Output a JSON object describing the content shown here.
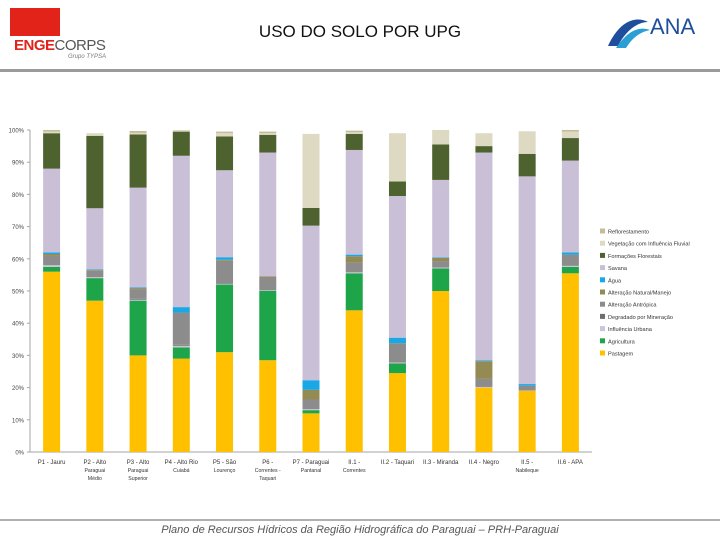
{
  "header": {
    "logo_enge": "ENGE",
    "logo_corps": "CORPS",
    "logo_sub": "Grupo TYPSA",
    "title": "USO DO SOLO POR UPG",
    "ana_logo": "ANA"
  },
  "footer": {
    "text": "Plano de Recursos Hídricos da Região Hidrográfica do Paraguai – PRH-Paraguai"
  },
  "colors": {
    "Pastagem": "#ffc000",
    "Agricultura": "#1ea54a",
    "Influência Urbana": "#cdc3da",
    "Degradado por Mineração": "#6e6e6e",
    "Alteração Antrópica": "#8c8c8c",
    "Alteração Natural/Manejo": "#948a54",
    "Água": "#1aa7e6",
    "Savana": "#c9c0d8",
    "Formações Florestais": "#4e6230",
    "Vegetação com Influência Fluvial": "#ddd9c3",
    "Reflorestamento": "#c4bd97"
  },
  "chart_data": {
    "type": "bar",
    "stacked": true,
    "title": "",
    "xlabel": "",
    "ylabel": "",
    "ylim": [
      0,
      100
    ],
    "y_ticks": [
      "0%",
      "10%",
      "20%",
      "30%",
      "40%",
      "50%",
      "60%",
      "70%",
      "80%",
      "90%",
      "100%"
    ],
    "grid": false,
    "legend_position": "right",
    "categories": [
      [
        "P1 - Jauru"
      ],
      [
        "P2 - Alto",
        "Paraguai",
        "Médio"
      ],
      [
        "P3 - Alto",
        "Paraguai",
        "Superior"
      ],
      [
        "P4 - Alto Rio",
        "Cuiabá"
      ],
      [
        "P5 - São",
        "Lourenço"
      ],
      [
        "P6 -",
        "Correntes -",
        "Taquari"
      ],
      [
        "P7 - Paraguai",
        "Pantanal"
      ],
      [
        "II.1 -",
        "Correntes"
      ],
      [
        "II.2 - Taquari"
      ],
      [
        "II.3 - Miranda"
      ],
      [
        "II.4 - Negro"
      ],
      [
        "II.5 -",
        "Nabileque"
      ],
      [
        "II.6 - APA"
      ]
    ],
    "series": [
      {
        "name": "Pastagem",
        "values": [
          56,
          47,
          30,
          29,
          31,
          28.5,
          12,
          44,
          24.5,
          50,
          20,
          19,
          55.5
        ]
      },
      {
        "name": "Agricultura",
        "values": [
          1.5,
          7,
          17,
          3.5,
          21,
          21.5,
          1,
          11.5,
          3,
          7,
          0,
          0,
          2
        ]
      },
      {
        "name": "Influência Urbana",
        "values": [
          0.5,
          0.3,
          0.3,
          0.5,
          0.2,
          0.2,
          0.3,
          0.3,
          0.3,
          0.3,
          0.2,
          0.1,
          0.3
        ]
      },
      {
        "name": "Degradado por Mineração",
        "values": [
          0,
          0,
          0.3,
          0.3,
          0.2,
          0,
          0,
          0,
          0,
          0,
          0,
          0,
          0
        ]
      },
      {
        "name": "Alteração Antrópica",
        "values": [
          3,
          2,
          3,
          10,
          7,
          4,
          3,
          3,
          6,
          2,
          2.5,
          1.5,
          3.5
        ]
      },
      {
        "name": "Alteração Natural/Manejo",
        "values": [
          0.5,
          0.2,
          0.3,
          0,
          0.3,
          0.3,
          3,
          2,
          0,
          1,
          5.5,
          0,
          0
        ]
      },
      {
        "name": "Água",
        "values": [
          0.5,
          0.2,
          0.2,
          1.7,
          0.8,
          0,
          3,
          0.5,
          1.7,
          0.2,
          0.3,
          0.5,
          0.7
        ]
      },
      {
        "name": "Savana",
        "values": [
          26,
          19,
          31,
          47,
          27,
          38.5,
          48,
          32.5,
          44,
          24,
          64.5,
          64.5,
          28.5
        ]
      },
      {
        "name": "Formações Florestais",
        "values": [
          11,
          22.5,
          16.5,
          7.5,
          10.5,
          5.5,
          5.5,
          5,
          4.5,
          11,
          2,
          7,
          7
        ]
      },
      {
        "name": "Vegetação com Influência Fluvial",
        "values": [
          0.5,
          0.8,
          0.5,
          0.5,
          1,
          0.5,
          23,
          0.5,
          15,
          4.5,
          4,
          7,
          2
        ]
      },
      {
        "name": "Reflorestamento",
        "values": [
          0.5,
          0,
          0.6,
          0,
          0.5,
          0.5,
          0,
          0.5,
          0,
          0,
          0,
          0,
          0.5
        ]
      }
    ],
    "legend": [
      "Reflorestamento",
      "Vegetação com Influência Fluvial",
      "Formações Florestais",
      "Savana",
      "Água",
      "Alteração Natural/Manejo",
      "Alteração Antrópica",
      "Degradado por Mineração",
      "Influência Urbana",
      "Agricultura",
      "Pastagem"
    ]
  }
}
